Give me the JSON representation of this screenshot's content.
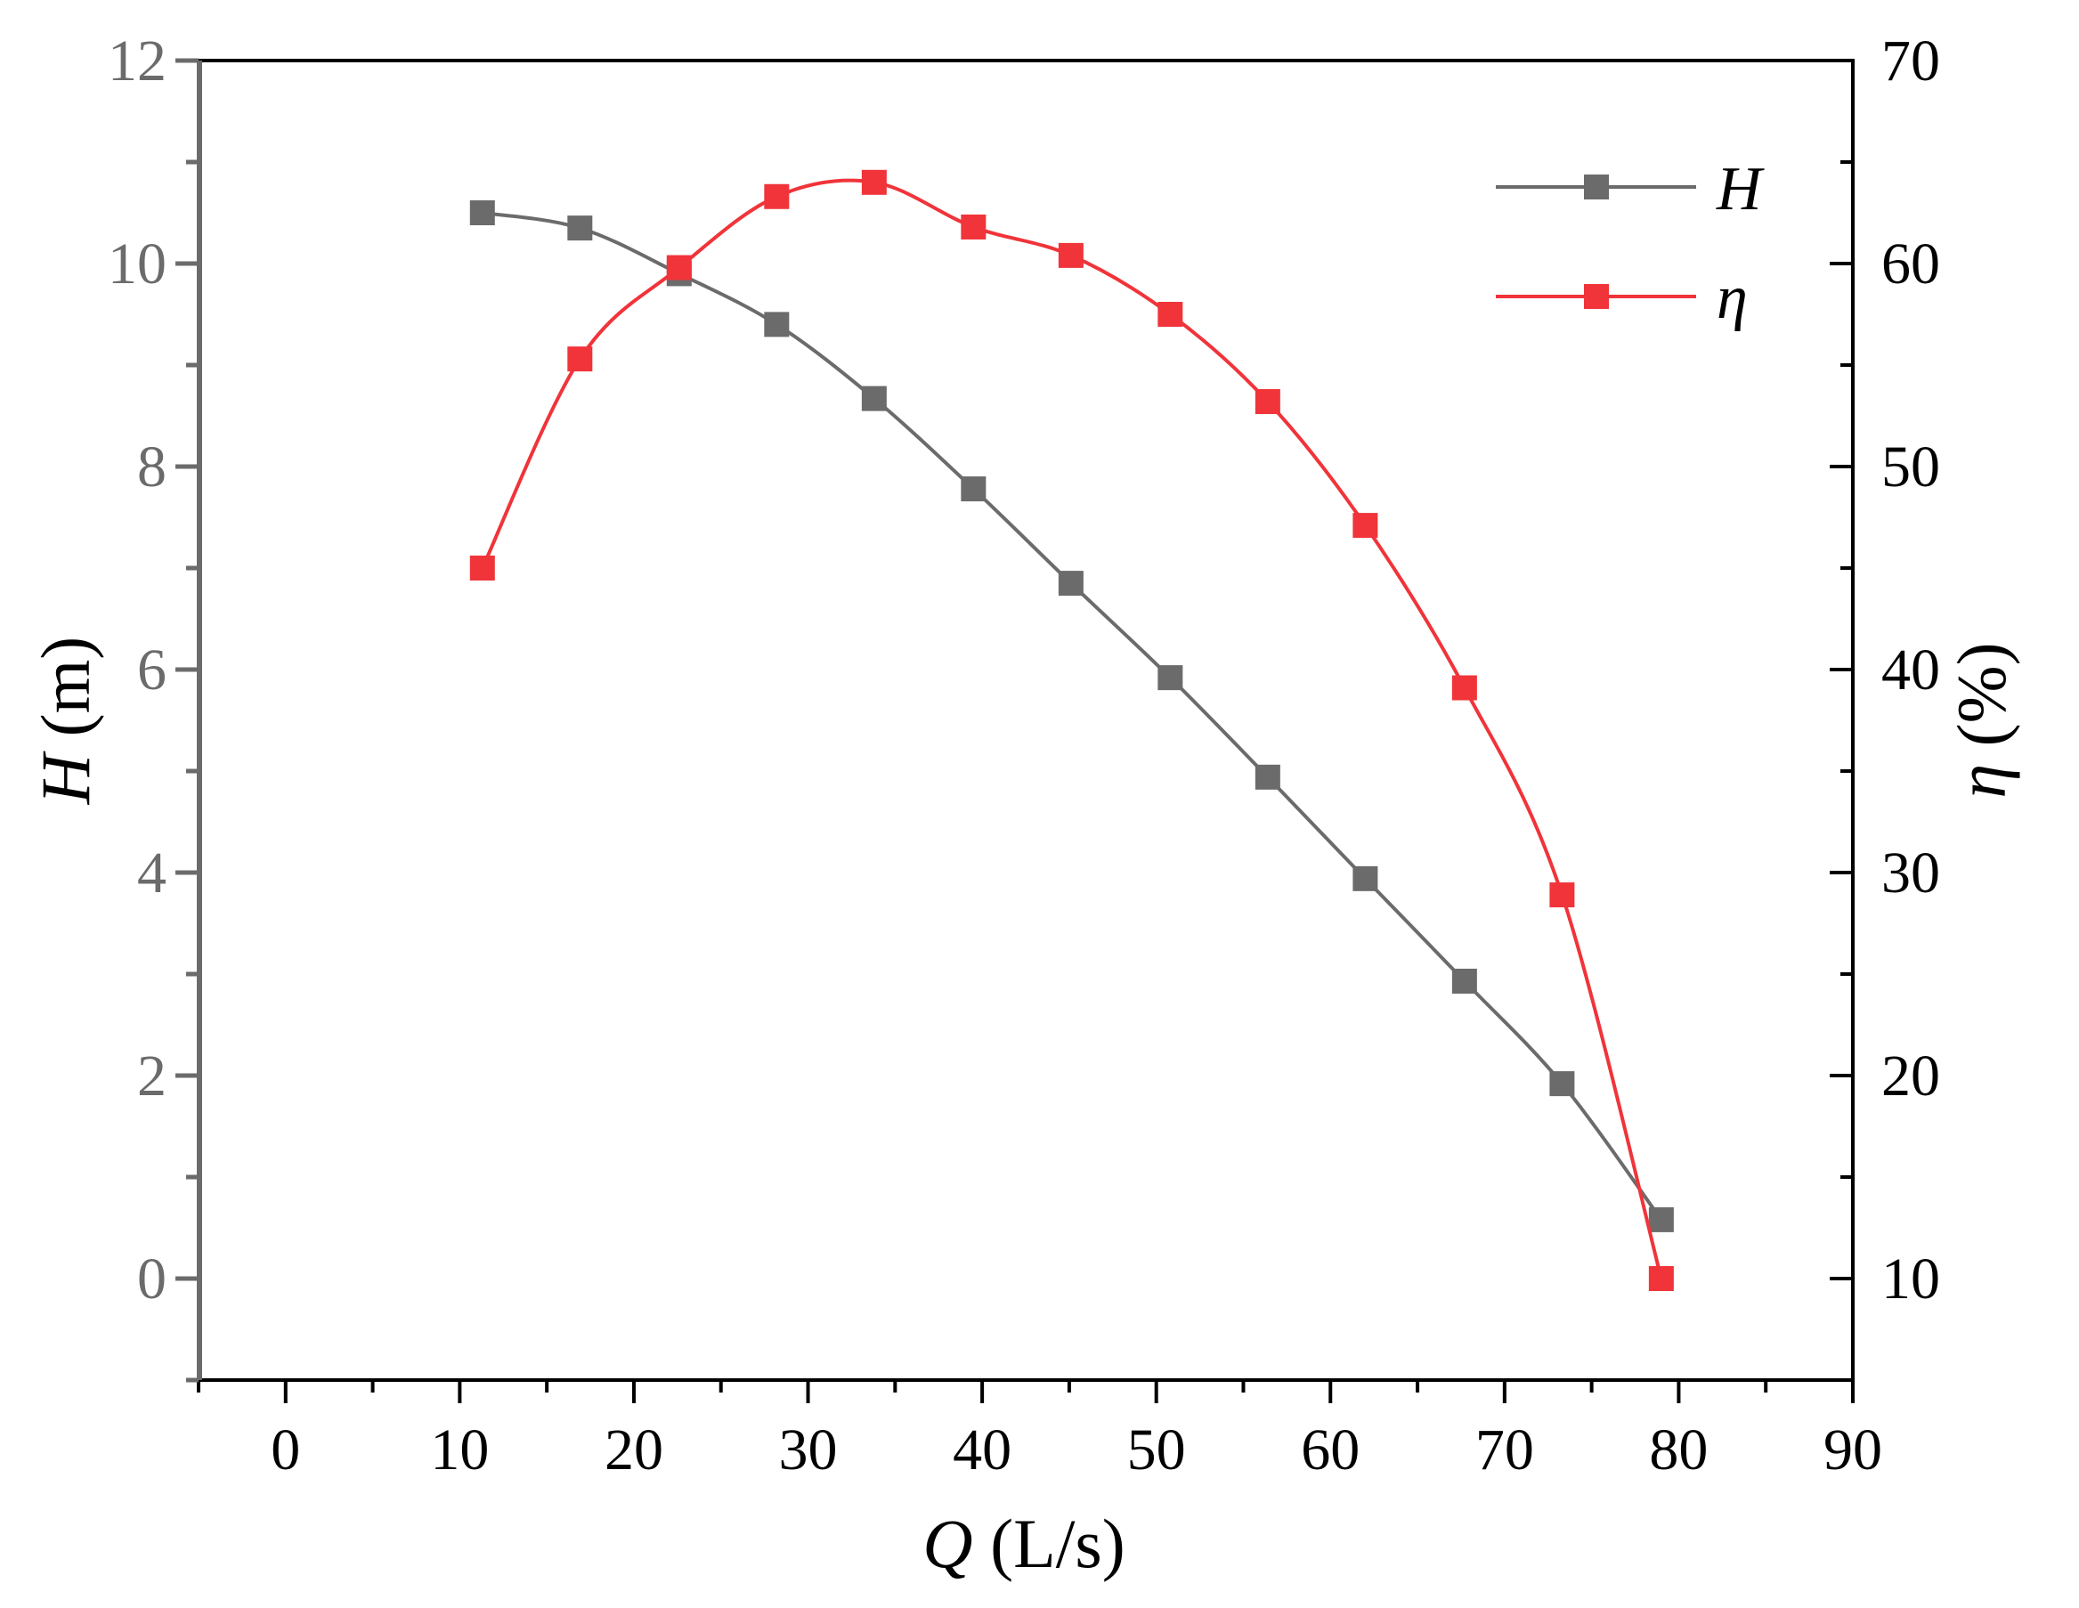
{
  "chart_data": {
    "type": "line",
    "xlabel_var": "Q",
    "xlabel_unit": "(L/s)",
    "ylabel_left_var": "H",
    "ylabel_left_unit": "(m)",
    "ylabel_right_var": "η",
    "ylabel_right_unit": "(%)",
    "xlim": [
      -5,
      90
    ],
    "ylim_left": [
      -1,
      12
    ],
    "ylim_right": [
      5,
      70
    ],
    "x_ticks": [
      0,
      10,
      20,
      30,
      40,
      50,
      60,
      70,
      80,
      90
    ],
    "y_left_ticks": [
      0,
      2,
      4,
      6,
      8,
      10,
      12
    ],
    "y_right_ticks": [
      10,
      20,
      30,
      40,
      50,
      60,
      70
    ],
    "legend_position": "top-right",
    "series": [
      {
        "name": "H",
        "axis": "left",
        "color": "#6b6b6b",
        "marker": "square",
        "x": [
          11.3,
          16.9,
          22.6,
          28.2,
          33.8,
          39.5,
          45.1,
          50.8,
          56.4,
          62.0,
          67.7,
          73.3,
          79.0
        ],
        "y": [
          10.5,
          10.35,
          9.9,
          9.4,
          8.67,
          7.78,
          6.85,
          5.92,
          4.94,
          3.94,
          2.93,
          1.92,
          0.58
        ]
      },
      {
        "name": "η",
        "axis": "right",
        "color": "#f0343a",
        "marker": "square",
        "x": [
          11.3,
          16.9,
          22.6,
          28.2,
          33.8,
          39.5,
          45.1,
          50.8,
          56.4,
          62.0,
          67.7,
          73.3,
          79.0
        ],
        "y": [
          45.0,
          55.3,
          59.8,
          63.3,
          64.0,
          61.8,
          60.4,
          57.5,
          53.2,
          47.1,
          39.1,
          28.9,
          10.0
        ]
      }
    ]
  }
}
